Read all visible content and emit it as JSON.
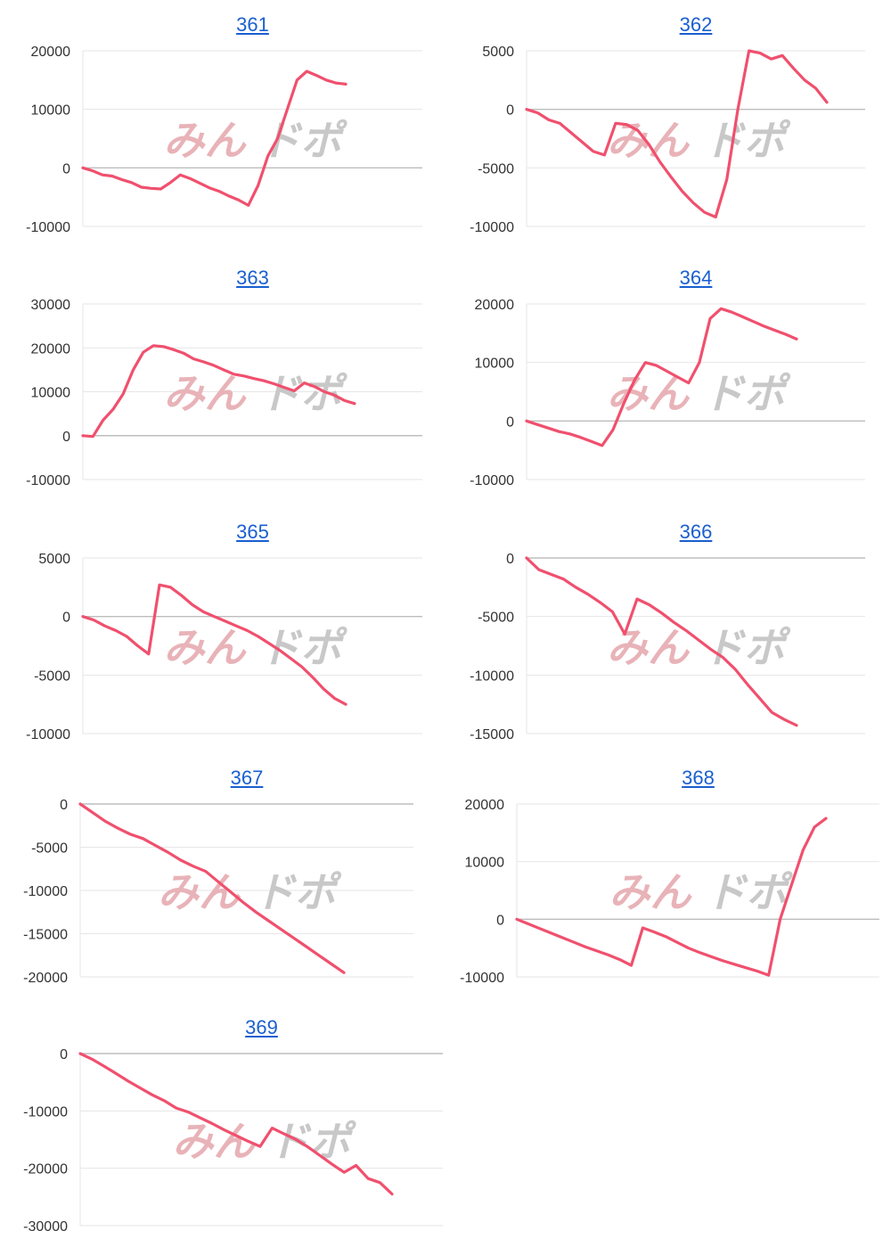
{
  "watermark": {
    "left": "みん",
    "right": "ドポ",
    "left_color": "#e8b3b8",
    "right_color": "#c8c8c8"
  },
  "colors": {
    "line": "#f0506e",
    "grid": "#e6e6e6",
    "zero": "#bdbdbd",
    "title": "#1a5fd0"
  },
  "chart_data": [
    {
      "type": "line",
      "title": "361",
      "ylim": [
        -10000,
        20000
      ],
      "yticks": [
        20000,
        10000,
        0,
        -10000
      ],
      "y": [
        0,
        -500,
        -1200,
        -1400,
        -2000,
        -2500,
        -3300,
        -3500,
        -3600,
        -2500,
        -1200,
        -1800,
        -2600,
        -3400,
        -4000,
        -4800,
        -5500,
        -6400,
        -3000,
        2000,
        5000,
        10000,
        15000,
        16500,
        15800,
        15000,
        14500,
        14300
      ]
    },
    {
      "type": "line",
      "title": "362",
      "ylim": [
        -10000,
        5000
      ],
      "yticks": [
        5000,
        0,
        -5000,
        -10000
      ],
      "y": [
        0,
        -300,
        -900,
        -1200,
        -2000,
        -2800,
        -3600,
        -3900,
        -1200,
        -1300,
        -1800,
        -3000,
        -4500,
        -5800,
        -7000,
        -8000,
        -8800,
        -9200,
        -6000,
        0,
        5000,
        4800,
        4300,
        4600,
        3500,
        2500,
        1800,
        600
      ]
    },
    {
      "type": "line",
      "title": "363",
      "ylim": [
        -10000,
        30000
      ],
      "yticks": [
        30000,
        20000,
        10000,
        0,
        -10000
      ],
      "y": [
        0,
        -200,
        3500,
        6000,
        9500,
        15000,
        19000,
        20500,
        20300,
        19600,
        18800,
        17500,
        16800,
        16000,
        15000,
        14000,
        13600,
        13000,
        12500,
        11800,
        11000,
        10200,
        12000,
        11200,
        10000,
        9200,
        8000,
        7300
      ]
    },
    {
      "type": "line",
      "title": "364",
      "ylim": [
        -10000,
        20000
      ],
      "yticks": [
        20000,
        10000,
        0,
        -10000
      ],
      "y": [
        0,
        -600,
        -1200,
        -1800,
        -2200,
        -2800,
        -3500,
        -4200,
        -1500,
        3000,
        7000,
        10000,
        9500,
        8500,
        7500,
        6500,
        10000,
        17500,
        19200,
        18600,
        17800,
        17000,
        16200,
        15500,
        14800,
        14000
      ]
    },
    {
      "type": "line",
      "title": "365",
      "ylim": [
        -10000,
        5000
      ],
      "yticks": [
        5000,
        0,
        -5000,
        -10000
      ],
      "y": [
        0,
        -300,
        -800,
        -1200,
        -1700,
        -2500,
        -3200,
        2700,
        2500,
        1800,
        1000,
        400,
        0,
        -400,
        -800,
        -1200,
        -1700,
        -2300,
        -2900,
        -3600,
        -4300,
        -5200,
        -6200,
        -7000,
        -7500
      ]
    },
    {
      "type": "line",
      "title": "366",
      "ylim": [
        -15000,
        0
      ],
      "yticks": [
        0,
        -5000,
        -10000,
        -15000
      ],
      "y": [
        0,
        -1000,
        -1400,
        -1800,
        -2500,
        -3100,
        -3800,
        -4600,
        -6500,
        -3500,
        -4000,
        -4700,
        -5500,
        -6200,
        -7000,
        -7800,
        -8500,
        -9500,
        -10800,
        -12000,
        -13200,
        -13800,
        -14300
      ]
    },
    {
      "type": "line",
      "title": "367",
      "ylim": [
        -20000,
        0
      ],
      "yticks": [
        0,
        -5000,
        -10000,
        -15000,
        -20000
      ],
      "y": [
        0,
        -1000,
        -2000,
        -2800,
        -3500,
        -4000,
        -4800,
        -5600,
        -6500,
        -7200,
        -7800,
        -9000,
        -10200,
        -11400,
        -12500,
        -13500,
        -14500,
        -15500,
        -16500,
        -17500,
        -18500,
        -19500
      ]
    },
    {
      "type": "line",
      "title": "368",
      "ylim": [
        -10000,
        20000
      ],
      "yticks": [
        20000,
        10000,
        0,
        -10000
      ],
      "y": [
        0,
        -800,
        -1600,
        -2400,
        -3200,
        -4000,
        -4800,
        -5500,
        -6200,
        -7000,
        -8000,
        -1500,
        -2200,
        -3000,
        -4000,
        -5000,
        -5800,
        -6500,
        -7200,
        -7800,
        -8400,
        -9000,
        -9700,
        0,
        6000,
        12000,
        16000,
        17500
      ]
    },
    {
      "type": "line",
      "title": "369",
      "ylim": [
        -30000,
        0
      ],
      "yticks": [
        0,
        -10000,
        -20000,
        -30000
      ],
      "y": [
        0,
        -1000,
        -2200,
        -3500,
        -4800,
        -6000,
        -7200,
        -8200,
        -9500,
        -10200,
        -11200,
        -12200,
        -13300,
        -14300,
        -15300,
        -16200,
        -13000,
        -14000,
        -15000,
        -16300,
        -17800,
        -19300,
        -20700,
        -19500,
        -21800,
        -22500,
        -24500
      ]
    }
  ]
}
